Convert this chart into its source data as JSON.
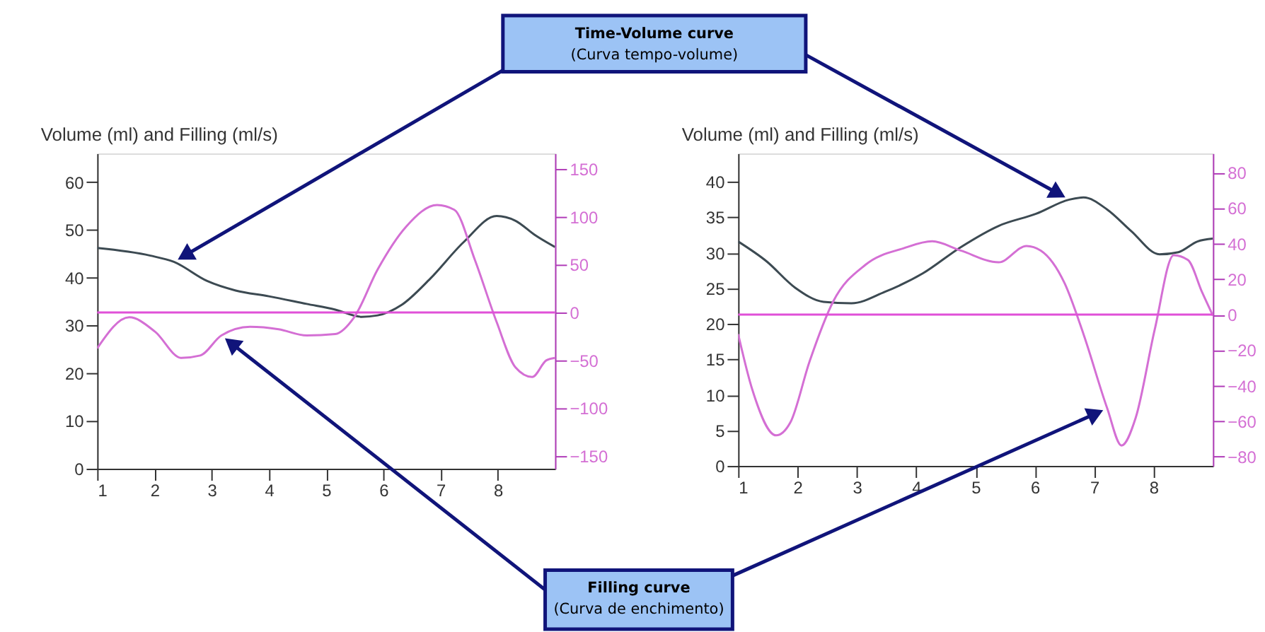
{
  "chart_data": [
    {
      "type": "line",
      "title": "Volume (ml) and Filling (ml/s)",
      "xlim": [
        1,
        9
      ],
      "xticks": [
        1,
        2,
        3,
        4,
        5,
        6,
        7,
        8
      ],
      "ylim": [
        0,
        66
      ],
      "yticks": [
        0,
        10,
        20,
        30,
        40,
        50,
        60
      ],
      "y2lim": [
        -163.5,
        166.5
      ],
      "y2ticks": [
        -150,
        -100,
        -50,
        0,
        50,
        100,
        150
      ],
      "series": [
        {
          "color": "#3c4a52",
          "x": [
            1,
            1.93,
            2.34,
            2.92,
            3.42,
            4.0,
            4.66,
            5.16,
            5.62,
            5.9,
            6.32,
            6.82,
            7.4,
            7.98,
            8.31,
            8.65,
            9.0
          ],
          "values": [
            46.2,
            44.6,
            43.3,
            39.3,
            37.3,
            36.1,
            34.5,
            33.3,
            31.8,
            32.1,
            34.3,
            39.8,
            47.4,
            52.9,
            51.9,
            48.9,
            46.4
          ]
        },
        {
          "color": "#d46fd4",
          "axis": "y2",
          "x": [
            1,
            1.56,
            2.01,
            2.47,
            2.8,
            3.17,
            3.67,
            4.17,
            4.66,
            5.16,
            5.49,
            5.9,
            6.4,
            6.94,
            7.24,
            7.6,
            7.98,
            8.31,
            8.6,
            8.85,
            9.0
          ],
          "values": [
            -37.5,
            -5,
            -20,
            -47.5,
            -45,
            -24,
            -15,
            -17.5,
            -24,
            -22.5,
            -5,
            45,
            90,
            112.5,
            107.5,
            55,
            -10,
            -57.5,
            -67.5,
            -50,
            -47.5
          ]
        }
      ],
      "ref_lines": [
        {
          "axis": "y2",
          "value": 0,
          "color": "#e050d8"
        }
      ],
      "annotations": [
        "Time-Volume curve",
        "(Curva tempo-volume)",
        "Filling curve",
        "(Curva de enchimento)"
      ]
    },
    {
      "type": "line",
      "title": "Volume (ml) and Filling (ml/s)",
      "xlim": [
        1,
        9
      ],
      "xticks": [
        1,
        2,
        3,
        4,
        5,
        6,
        7,
        8
      ],
      "ylim": [
        0,
        44
      ],
      "yticks": [
        0,
        5,
        10,
        15,
        20,
        25,
        30,
        35,
        40
      ],
      "y2lim": [
        -85.2,
        90.8
      ],
      "y2ticks": [
        -80,
        -60,
        -40,
        -20,
        0,
        20,
        40,
        60,
        80
      ],
      "series": [
        {
          "color": "#3c4a52",
          "x": [
            1,
            1.48,
            1.96,
            2.44,
            2.91,
            3.47,
            4.11,
            4.75,
            5.39,
            6.02,
            6.58,
            6.82,
            7.22,
            7.62,
            8.1,
            8.42,
            8.74,
            9.0
          ],
          "values": [
            31.6,
            28.8,
            25.1,
            23.1,
            22.9,
            24.5,
            27.1,
            30.8,
            33.8,
            35.5,
            37.5,
            37.8,
            36.1,
            33.1,
            29.8,
            30.1,
            31.6,
            32
          ]
        },
        {
          "color": "#d46fd4",
          "axis": "y2",
          "x": [
            1,
            1.24,
            1.64,
            1.88,
            2.2,
            2.6,
            3.15,
            3.79,
            4.27,
            4.75,
            5.39,
            5.86,
            6.1,
            6.5,
            6.82,
            7.22,
            7.46,
            7.7,
            8.02,
            8.34,
            8.58,
            8.82,
            9.0
          ],
          "values": [
            -11,
            -42.4,
            -68,
            -60.7,
            -26.7,
            7.3,
            28.2,
            37.4,
            41.3,
            36.1,
            29.5,
            38.7,
            36.1,
            17.8,
            -11,
            -52.8,
            -73.7,
            -58,
            -8.4,
            33.5,
            30.8,
            12.5,
            -0.5
          ]
        }
      ],
      "ref_lines": [
        {
          "axis": "y2",
          "value": 0,
          "color": "#e050d8"
        }
      ]
    }
  ]
}
